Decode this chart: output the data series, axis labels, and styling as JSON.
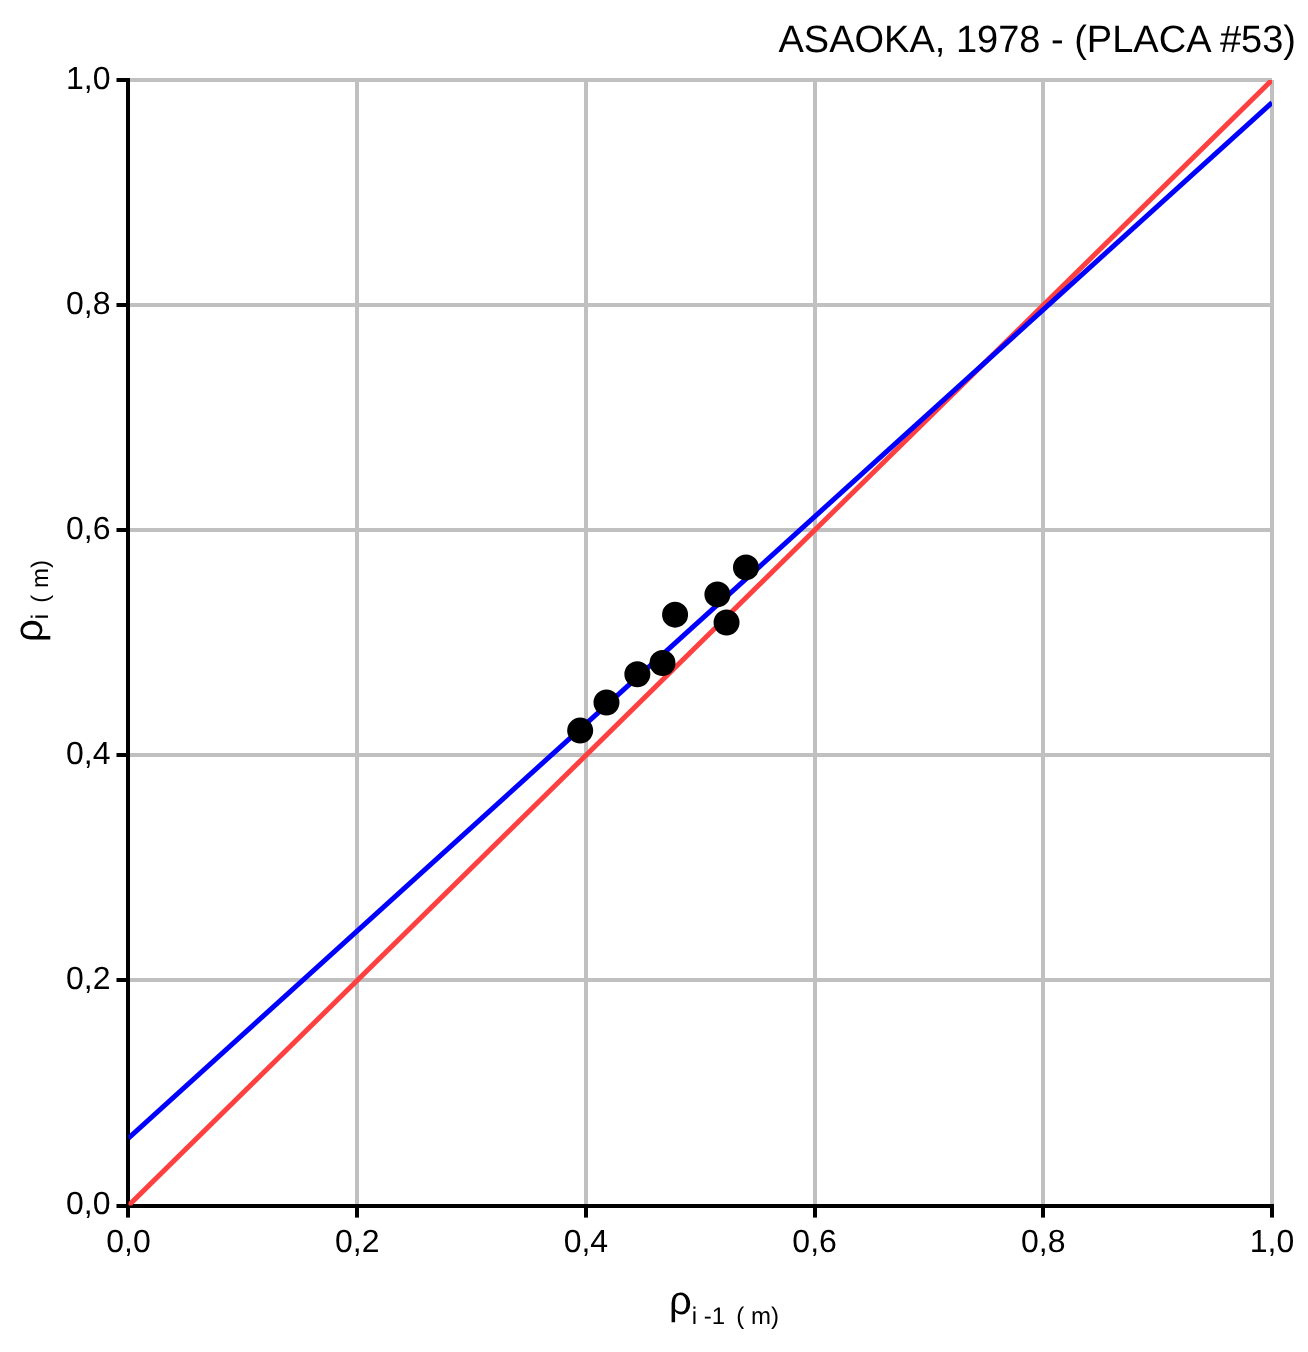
{
  "chart_data": {
    "type": "scatter",
    "title": "ASAOKA, 1978 - (PLACA #53)",
    "xlabel": "ρ$_{i -1}$ $_{( m)}$",
    "ylabel": "ρ$_{i}$ $_{( m)}$",
    "series": [
      {
        "type": "scatter",
        "color": "#000000",
        "marker": "circle",
        "x": [
          0.395,
          0.418,
          0.445,
          0.467,
          0.478,
          0.515,
          0.523,
          0.54
        ],
        "values": [
          0.422,
          0.447,
          0.472,
          0.482,
          0.525,
          0.543,
          0.518,
          0.567
        ]
      },
      {
        "type": "line",
        "color": "#0000ff",
        "x": [
          0,
          1
        ],
        "values": [
          0.06,
          0.98
        ]
      },
      {
        "type": "line",
        "color": "#ff4040",
        "x": [
          0,
          1
        ],
        "values": [
          0,
          1
        ]
      }
    ],
    "xlim": [
      0,
      1
    ],
    "ylim": [
      0,
      1
    ],
    "xticks": [
      {
        "value": 0,
        "label": "0,0"
      },
      {
        "value": 0.2,
        "label": "0,2"
      },
      {
        "value": 0.4,
        "label": "0,4"
      },
      {
        "value": 0.6,
        "label": "0,6"
      },
      {
        "value": 0.8,
        "label": "0,8"
      },
      {
        "value": 1,
        "label": "1,0"
      }
    ],
    "yticks": [
      {
        "value": 0,
        "label": "0,0"
      },
      {
        "value": 0.2,
        "label": "0,2"
      },
      {
        "value": 0.4,
        "label": "0,4"
      },
      {
        "value": 0.6,
        "label": "0,6"
      },
      {
        "value": 0.8,
        "label": "0,8"
      },
      {
        "value": 1,
        "label": "1,0"
      }
    ],
    "grid": true,
    "legend": false
  }
}
